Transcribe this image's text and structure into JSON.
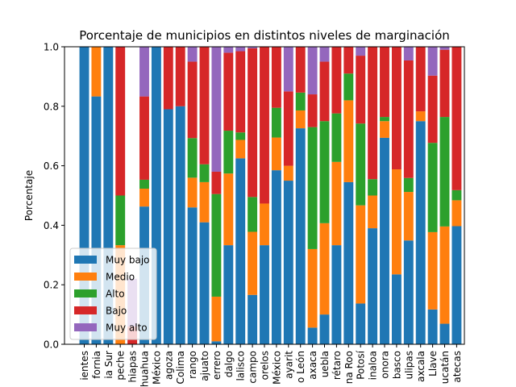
{
  "chart_data": {
    "type": "bar",
    "stacked": true,
    "title": "Porcentaje de municipios en distintos niveles de marginación",
    "xlabel": "",
    "ylabel": "Porcentaje",
    "ylim": [
      0,
      1
    ],
    "yticks": [
      "0.0",
      "0.2",
      "0.4",
      "0.6",
      "0.8",
      "1.0"
    ],
    "grid": false,
    "legend_position": "lower-left",
    "categories": [
      "ientes",
      "fornia",
      "ia Sur",
      "peche",
      "hiapas",
      "huahua",
      "México",
      "agoza",
      "Colima",
      "rango",
      "ajuato",
      "errero",
      "dalgo",
      "lalisco",
      "campo",
      "orelos",
      "México",
      "ayarit",
      "o León",
      "axaca",
      "uebla",
      "rétaro",
      "na Roo",
      "Potosí",
      "inaloa",
      "onora",
      "basco",
      "ulipas",
      "axcala",
      "Llave",
      "ucatán",
      "atecas"
    ],
    "series": [
      {
        "name": "Muy bajo",
        "color": "#1f77b4",
        "values": [
          1.0,
          0.833,
          1.0,
          0.0,
          0.0,
          0.463,
          1.0,
          0.79,
          0.8,
          0.46,
          0.41,
          0.01,
          0.333,
          0.625,
          0.166,
          0.333,
          0.585,
          0.55,
          0.726,
          0.056,
          0.1,
          0.333,
          0.545,
          0.137,
          0.39,
          0.694,
          0.235,
          0.349,
          0.75,
          0.117,
          0.069,
          0.397
        ]
      },
      {
        "name": "Medio",
        "color": "#ff7f0e",
        "values": [
          0.0,
          0.167,
          0.0,
          0.333,
          0.0,
          0.06,
          0.0,
          0.0,
          0.0,
          0.1,
          0.135,
          0.15,
          0.241,
          0.062,
          0.212,
          0.14,
          0.11,
          0.05,
          0.06,
          0.264,
          0.307,
          0.28,
          0.275,
          0.33,
          0.11,
          0.056,
          0.353,
          0.163,
          0.033,
          0.26,
          0.327,
          0.087
        ]
      },
      {
        "name": "Alto",
        "color": "#2ca02c",
        "values": [
          0.0,
          0.0,
          0.0,
          0.167,
          0.0,
          0.03,
          0.0,
          0.0,
          0.0,
          0.133,
          0.06,
          0.345,
          0.144,
          0.025,
          0.117,
          0.0,
          0.1,
          0.0,
          0.06,
          0.41,
          0.343,
          0.163,
          0.09,
          0.275,
          0.055,
          0.014,
          0.0,
          0.047,
          0.0,
          0.3,
          0.368,
          0.034
        ]
      },
      {
        "name": "Bajo",
        "color": "#d62728",
        "values": [
          0.0,
          0.0,
          0.0,
          0.5,
          0.06,
          0.28,
          0.0,
          0.21,
          0.2,
          0.257,
          0.395,
          0.075,
          0.262,
          0.273,
          0.5,
          0.527,
          0.205,
          0.25,
          0.154,
          0.11,
          0.2,
          0.224,
          0.09,
          0.228,
          0.445,
          0.236,
          0.412,
          0.395,
          0.217,
          0.226,
          0.226,
          0.482
        ]
      },
      {
        "name": "Muy alto",
        "color": "#9467bd",
        "values": [
          0.0,
          0.0,
          0.0,
          0.0,
          0.16,
          0.167,
          0.0,
          0.0,
          0.0,
          0.05,
          0.0,
          0.42,
          0.02,
          0.015,
          0.005,
          0.0,
          0.0,
          0.15,
          0.0,
          0.16,
          0.05,
          0.0,
          0.0,
          0.03,
          0.0,
          0.0,
          0.0,
          0.046,
          0.0,
          0.097,
          0.01,
          0.0
        ]
      }
    ]
  }
}
